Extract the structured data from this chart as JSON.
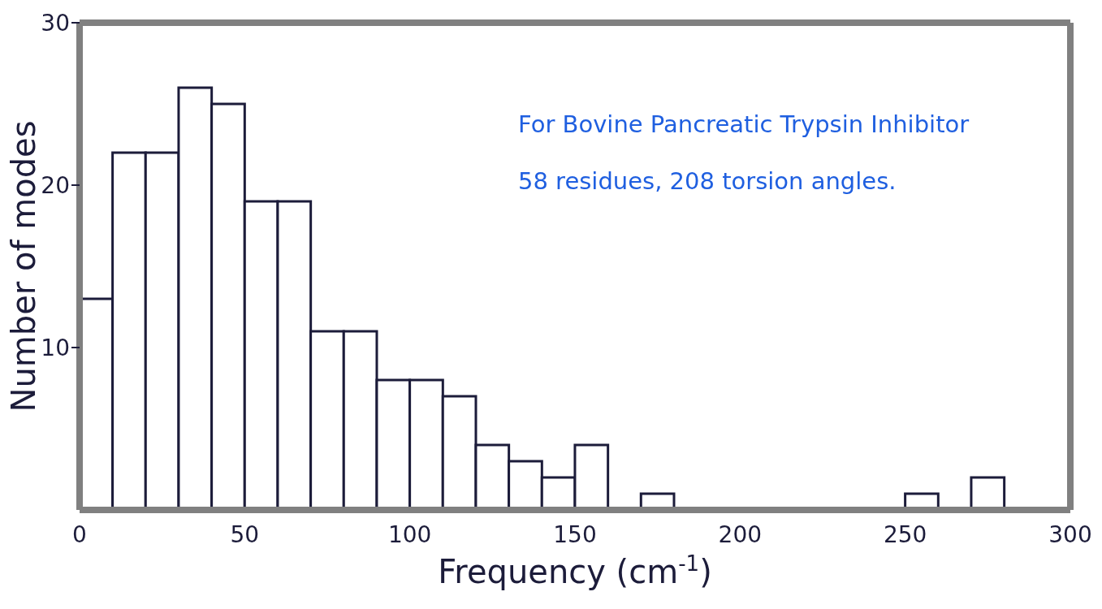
{
  "chart_data": {
    "type": "histogram",
    "bins": [
      0,
      10,
      20,
      30,
      40,
      50,
      60,
      70,
      80,
      90,
      100,
      110,
      120,
      130,
      140,
      150,
      160,
      170,
      180,
      190,
      200,
      210,
      220,
      230,
      240,
      250,
      260,
      270,
      280
    ],
    "values": [
      13,
      22,
      22,
      26,
      25,
      19,
      19,
      11,
      11,
      8,
      8,
      7,
      4,
      3,
      2,
      4,
      0,
      1,
      0,
      0,
      0,
      0,
      0,
      0,
      0,
      1,
      0,
      2
    ],
    "color": "#1c1c3a",
    "xlabel": "Frequency (cm$^{-1}$)",
    "ylabel": "Number of modes",
    "xlim": [
      0,
      300
    ],
    "xticks": [
      0,
      50,
      100,
      150,
      200,
      250,
      300
    ],
    "ylim": [
      0,
      30
    ],
    "yticks": [
      10,
      20,
      30
    ],
    "grid": false,
    "annotations": [
      "For Bovine Pancreatic Trypsin Inhibitor",
      "58 residues, 208 torsion angles."
    ]
  }
}
